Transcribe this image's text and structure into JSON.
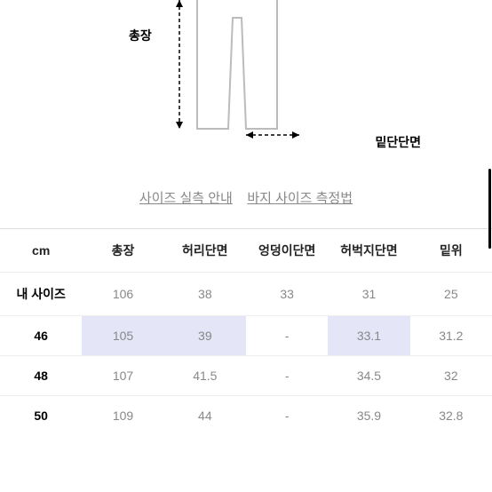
{
  "diagram": {
    "label_left": "총장",
    "label_right": "밑단단면",
    "stroke_color": "#999999",
    "arrow_color": "#000000"
  },
  "links": {
    "link1": "사이즈 실측 안내",
    "link2": "바지 사이즈 측정법"
  },
  "table": {
    "headers": [
      "cm",
      "총장",
      "허리단면",
      "엉덩이단면",
      "허벅지단면",
      "밑위"
    ],
    "rows": [
      {
        "label": "내 사이즈",
        "values": [
          "106",
          "38",
          "33",
          "31",
          "25"
        ],
        "highlight": []
      },
      {
        "label": "46",
        "values": [
          "105",
          "39",
          "-",
          "33.1",
          "31.2"
        ],
        "highlight": [
          0,
          1,
          3
        ]
      },
      {
        "label": "48",
        "values": [
          "107",
          "41.5",
          "-",
          "34.5",
          "32"
        ],
        "highlight": []
      },
      {
        "label": "50",
        "values": [
          "109",
          "44",
          "-",
          "35.9",
          "32.8"
        ],
        "highlight": []
      }
    ]
  }
}
